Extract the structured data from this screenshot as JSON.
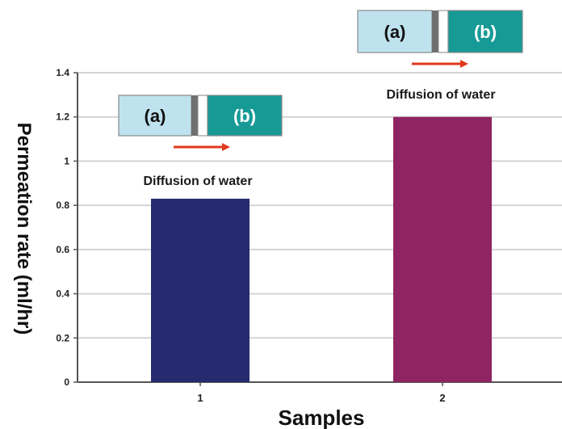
{
  "chart_data": {
    "type": "bar",
    "categories": [
      "1",
      "2"
    ],
    "values": [
      0.83,
      1.2
    ],
    "xlabel": "Samples",
    "ylabel": "Permeation rate (ml/hr)",
    "ylim": [
      0,
      1.4
    ],
    "yticks": [
      "0",
      "0.2",
      "0.4",
      "0.6",
      "0.8",
      "1",
      "1.2",
      "1.4"
    ],
    "grid": true,
    "bar_colors": [
      "#262a6e",
      "#8f2462"
    ],
    "annotations": [
      {
        "text": "Diffusion of water",
        "bar": 0
      },
      {
        "text": "Diffusion of water",
        "bar": 1
      }
    ],
    "diagrams": [
      {
        "bar": 0,
        "left_label": "(a)",
        "right_label": "(b)",
        "left_color": "#bfe3ee",
        "right_color": "#179a96",
        "membrane_color": "#6f6f6f",
        "arrow_color": "#e0391e"
      },
      {
        "bar": 1,
        "left_label": "(a)",
        "right_label": "(b)",
        "left_color": "#bfe3ee",
        "right_color": "#179a96",
        "membrane_color": "#6f6f6f",
        "arrow_color": "#e0391e"
      }
    ]
  }
}
